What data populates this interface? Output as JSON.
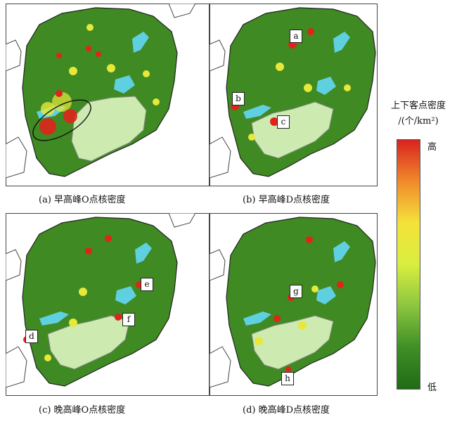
{
  "panels": [
    {
      "caption": "(a) 早高峰O点核密度",
      "markers": []
    },
    {
      "caption": "(b) 早高峰D点核密度",
      "markers": [
        "a",
        "b",
        "c"
      ]
    },
    {
      "caption": "(c) 晚高峰O点核密度",
      "markers": [
        "d",
        "e",
        "f"
      ]
    },
    {
      "caption": "(d) 晚高峰D点核密度",
      "markers": [
        "g",
        "h"
      ]
    }
  ],
  "legend": {
    "title_line1": "上下客点密度",
    "title_line2": "/(个/km²)",
    "high": "高",
    "low": "低",
    "colors": [
      "#d8231f",
      "#f08a2b",
      "#f4e23a",
      "#d9ee3f",
      "#8cc63f",
      "#3f8f26",
      "#1f6b16"
    ]
  },
  "colors": {
    "base_green": "#3f8a22",
    "light_green": "#cdebb0",
    "water": "#5fd0e0",
    "hot_red": "#e0241c",
    "warm_yellow": "#e8e83a"
  }
}
